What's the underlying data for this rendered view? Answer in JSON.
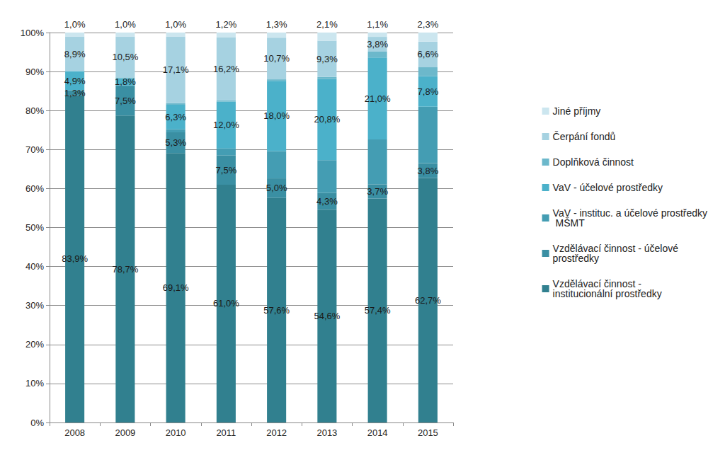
{
  "chart_data": {
    "type": "bar",
    "stacked": true,
    "grid": true,
    "legend": "right",
    "data_labels": true,
    "categories": [
      "2008",
      "2009",
      "2010",
      "2011",
      "2012",
      "2013",
      "2014",
      "2015"
    ],
    "ylim": [
      0,
      100
    ],
    "yticks": [
      {
        "value": 0,
        "label": "0%"
      },
      {
        "value": 10,
        "label": "10%"
      },
      {
        "value": 20,
        "label": "20%"
      },
      {
        "value": 30,
        "label": "30%"
      },
      {
        "value": 40,
        "label": "40%"
      },
      {
        "value": 50,
        "label": "50%"
      },
      {
        "value": 60,
        "label": "60%"
      },
      {
        "value": 70,
        "label": "70%"
      },
      {
        "value": 80,
        "label": "80%"
      },
      {
        "value": 90,
        "label": "90%"
      },
      {
        "value": 100,
        "label": "100%"
      }
    ],
    "series": [
      {
        "name": "Vzdělávací činnost - institucionální prostředky",
        "color": "#31808f",
        "values": [
          83.9,
          78.7,
          69.1,
          61.0,
          57.6,
          54.6,
          57.4,
          62.7
        ],
        "value_labels": [
          "83,9%",
          "78,7%",
          "69,1%",
          "61,0%",
          "57,6%",
          "54,6%",
          "57,4%",
          "62,7%"
        ]
      },
      {
        "name": "Vzdělávací činnost - účelové prostředky",
        "color": "#3a8fa3",
        "values": [
          1.3,
          7.5,
          5.3,
          7.5,
          5.0,
          4.3,
          3.7,
          3.8
        ],
        "value_labels": [
          "1,3%",
          "7,5%",
          "5,3%",
          "7,5%",
          "5,0%",
          "4,3%",
          "3,7%",
          "3,8%"
        ]
      },
      {
        "name": "VaV - instituc. a účelové prostředky MŠMT",
        "color": "#449db3",
        "values": [
          0,
          0.3,
          0.8,
          1.8,
          7.0,
          8.4,
          11.5,
          14.5
        ],
        "value_labels": [
          null,
          null,
          null,
          null,
          null,
          null,
          null,
          null
        ]
      },
      {
        "name": "VaV - účelové prostředky",
        "color": "#4bb1ca",
        "values": [
          4.9,
          1.8,
          6.3,
          12.0,
          18.0,
          20.8,
          21.0,
          7.8
        ],
        "value_labels": [
          "4,9%",
          "1,8%",
          "6,3%",
          "12,0%",
          "18,0%",
          "20,8%",
          "21,0%",
          "7,8%"
        ]
      },
      {
        "name": "Doplňková činnost",
        "color": "#6cb8cb",
        "values": [
          0,
          0.2,
          0.4,
          0.3,
          0.4,
          0.5,
          1.5,
          2.3
        ],
        "value_labels": [
          null,
          null,
          null,
          null,
          null,
          null,
          null,
          null
        ]
      },
      {
        "name": "Čerpání fondů",
        "color": "#a6d2e1",
        "values": [
          8.9,
          10.5,
          17.1,
          16.2,
          10.7,
          9.3,
          3.8,
          6.6
        ],
        "value_labels": [
          "8,9%",
          "10,5%",
          "17,1%",
          "16,2%",
          "10,7%",
          "9,3%",
          "3,8%",
          "6,6%"
        ]
      },
      {
        "name": "Jiné příjmy",
        "color": "#cce6ef",
        "values": [
          1.0,
          1.0,
          1.0,
          1.2,
          1.3,
          2.1,
          1.1,
          2.3
        ],
        "value_labels": [
          "1,0%",
          "1,0%",
          "1,0%",
          "1,2%",
          "1,3%",
          "2,1%",
          "1,1%",
          "2,3%"
        ]
      }
    ]
  }
}
